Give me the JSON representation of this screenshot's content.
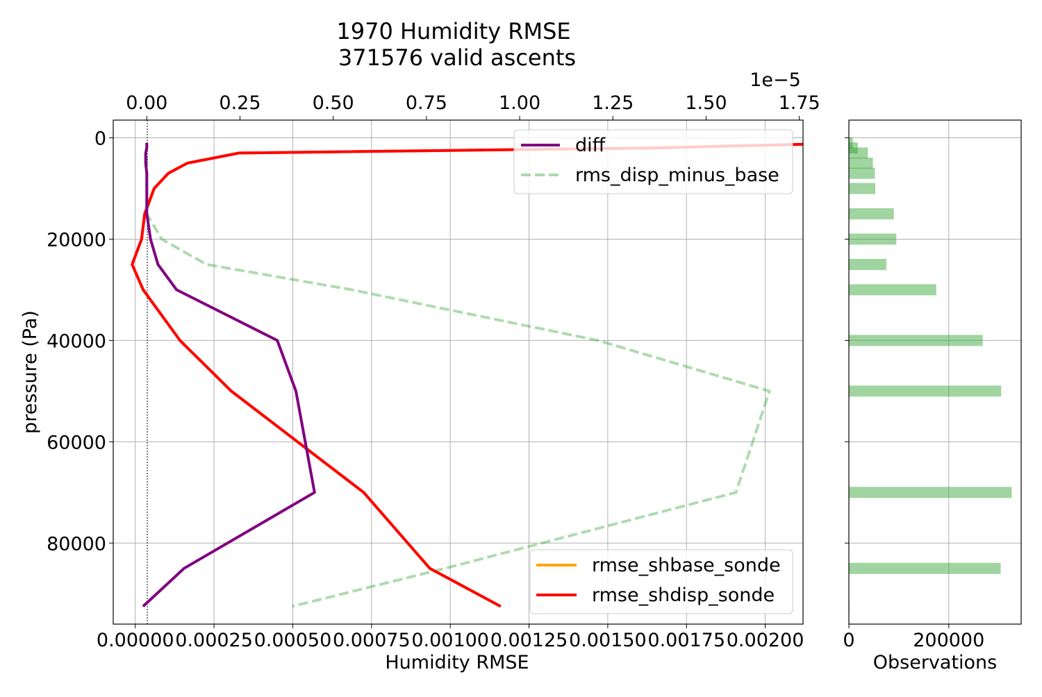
{
  "title_line1": "1970 Humidity RMSE",
  "title_line2": "371576 valid ascents",
  "chart_data": [
    {
      "type": "line",
      "xlabel": "Humidity RMSE",
      "ylabel": "pressure (Pa)",
      "xlim": [
        -7e-05,
        0.00212
      ],
      "ylim": [
        96000,
        -3500
      ],
      "y_inverted": true,
      "grid": true,
      "x_ticks": [
        0.0,
        0.00025,
        0.0005,
        0.00075,
        0.001,
        0.00125,
        0.0015,
        0.00175,
        0.002
      ],
      "x_tick_labels": [
        "0.00000",
        "0.00025",
        "0.00050",
        "0.00075",
        "0.00100",
        "0.00125",
        "0.00150",
        "0.00175",
        "0.00200"
      ],
      "y_ticks": [
        0,
        20000,
        40000,
        60000,
        80000
      ],
      "y_tick_labels": [
        "0",
        "20000",
        "40000",
        "60000",
        "80000"
      ],
      "pressure_levels": [
        1000,
        2000,
        3000,
        5000,
        7000,
        10000,
        15000,
        20000,
        25000,
        30000,
        40000,
        50000,
        70000,
        85000,
        92500
      ],
      "series": [
        {
          "name": "rmse_shbase_sonde",
          "color": "#ffa500",
          "style": "solid",
          "axis": "bottom",
          "x": [
            0.0023,
            0.00165,
            0.00033,
            0.000165,
            0.000105,
            6e-05,
            3e-05,
            2e-05,
            -1e-05,
            2.5e-05,
            0.000142,
            0.000305,
            0.000725,
            0.000935,
            0.00116
          ],
          "y": [
            1000,
            2000,
            3000,
            5000,
            7000,
            10000,
            15000,
            20000,
            25000,
            30000,
            40000,
            50000,
            70000,
            85000,
            92500
          ]
        },
        {
          "name": "rmse_shdisp_sonde",
          "color": "#ff0000",
          "style": "solid",
          "axis": "bottom",
          "x": [
            0.0023,
            0.00165,
            0.00033,
            0.000165,
            0.000105,
            6e-05,
            3e-05,
            2e-05,
            -1e-05,
            2.5e-05,
            0.000142,
            0.000305,
            0.000725,
            0.000935,
            0.00116
          ],
          "y": [
            1000,
            2000,
            3000,
            5000,
            7000,
            10000,
            15000,
            20000,
            25000,
            30000,
            40000,
            50000,
            70000,
            85000,
            92500
          ]
        }
      ],
      "legend": {
        "placement": "lower-right",
        "entries": [
          "rmse_shbase_sonde",
          "rmse_shdisp_sonde"
        ]
      }
    },
    {
      "type": "line",
      "axis": "top",
      "scale_text": "1e−5",
      "xlim": [
        -9e-07,
        1.76e-05
      ],
      "x_ticks": [
        0.0,
        2.5e-06,
        5e-06,
        7.5e-06,
        1e-05,
        1.25e-05,
        1.5e-05,
        1.75e-05
      ],
      "x_tick_labels": [
        "0.00",
        "0.25",
        "0.50",
        "0.75",
        "1.00",
        "1.25",
        "1.50",
        "1.75"
      ],
      "series": [
        {
          "name": "diff",
          "color": "#800080",
          "style": "solid",
          "x": [
            0.0,
            0.0,
            -3e-08,
            -3e-08,
            0.0,
            0.0,
            0.0,
            1e-07,
            3e-07,
            8e-07,
            3.5e-06,
            4e-06,
            4.5e-06,
            1e-06,
            -1e-07
          ],
          "y": [
            1000,
            2000,
            3000,
            5000,
            7000,
            10000,
            15000,
            20000,
            25000,
            30000,
            40000,
            50000,
            70000,
            85000,
            92500
          ]
        },
        {
          "name": "rms_disp_minus_base",
          "color": "#2ca02c",
          "style": "dashed",
          "x": [
            0.0,
            0.0,
            0.0,
            0.0,
            0.0,
            0.0,
            0.0,
            4e-07,
            1.6e-06,
            5.5e-06,
            1.21e-05,
            1.67e-05,
            1.58e-05,
            8e-06,
            3.9e-06
          ],
          "y": [
            1000,
            2000,
            3000,
            5000,
            7000,
            10000,
            15000,
            20000,
            25000,
            30000,
            40000,
            50000,
            70000,
            85000,
            92500
          ]
        }
      ],
      "legend": {
        "placement": "upper-right",
        "entries": [
          "diff",
          "rms_disp_minus_base"
        ]
      }
    },
    {
      "type": "bar",
      "orientation": "horizontal",
      "xlabel": "Observations",
      "xlim": [
        0,
        345000
      ],
      "x_ticks": [
        0,
        200000
      ],
      "x_tick_labels": [
        "0",
        "200000"
      ],
      "shares_y_with": "main",
      "color": "#2ca02c",
      "categories": [
        1000,
        2000,
        3000,
        5000,
        7000,
        10000,
        15000,
        20000,
        25000,
        30000,
        40000,
        50000,
        70000,
        85000,
        92500
      ],
      "values": [
        8000,
        18000,
        38000,
        48000,
        52000,
        53000,
        90000,
        95000,
        75000,
        175000,
        268000,
        305000,
        326000,
        304000,
        1000
      ]
    }
  ]
}
